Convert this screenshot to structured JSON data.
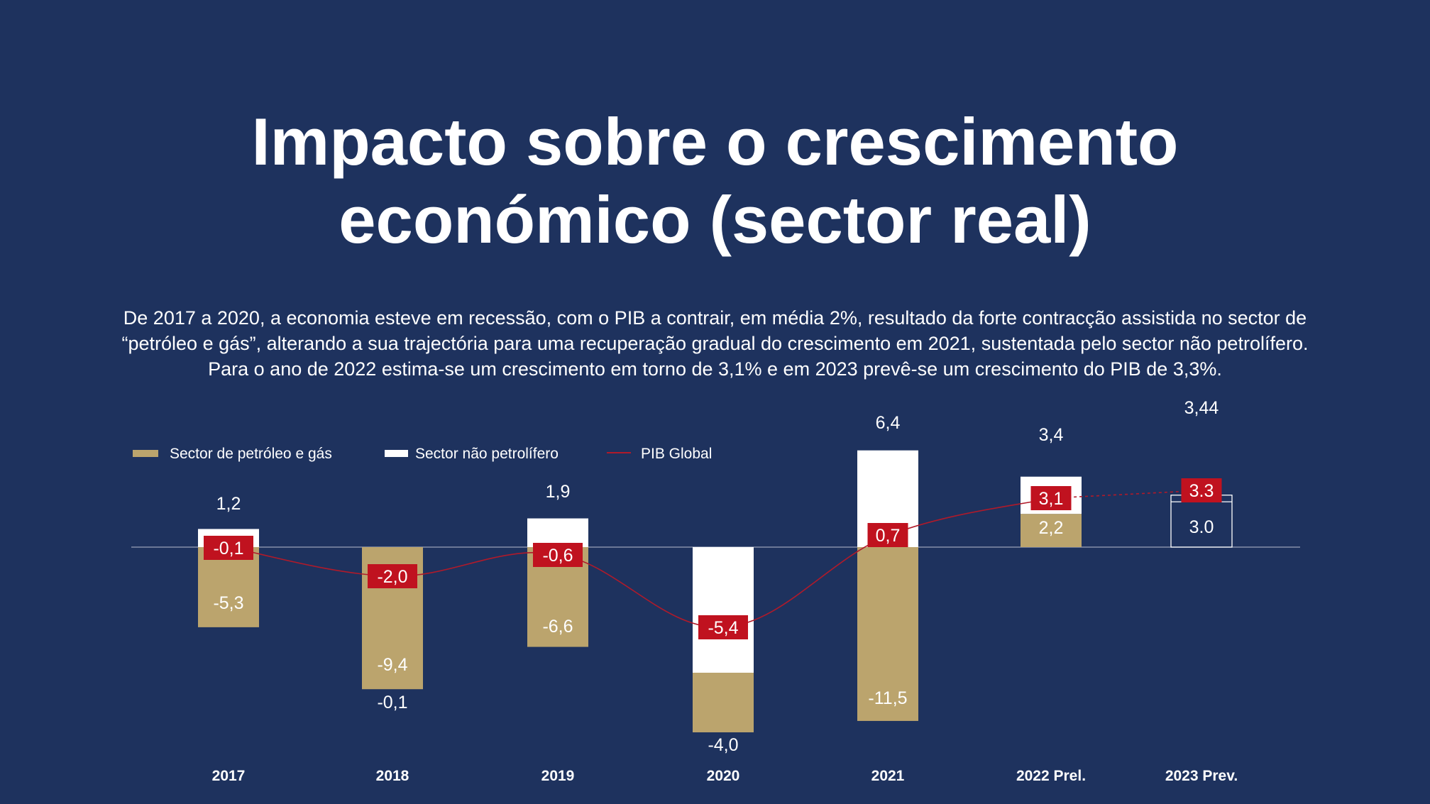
{
  "title": {
    "line1": "Impacto sobre o crescimento",
    "line2": "económico (sector real)"
  },
  "intro": {
    "line1": "De 2017 a 2020, a economia esteve em recessão, com o PIB a contrair, em média 2%, resultado da forte contracção assistida no sector de",
    "line2": "“petróleo e gás”, alterando a sua trajectória para uma recuperação gradual do crescimento em 2021, sustentada pelo sector não petrolífero.",
    "line3": "Para o ano de 2022 estima-se um crescimento em torno de 3,1% e em 2023 prevê-se um crescimento do PIB de 3,3%."
  },
  "colors": {
    "background": "#1e325e",
    "oil_gas": "#bba46d",
    "non_oil": "#ffffff",
    "pib_line": "#b01a2a",
    "pib_label_bg": "#c0121f",
    "baseline": "#9aa3b8"
  },
  "chart_data": {
    "type": "bar",
    "categories": [
      "2017",
      "2018",
      "2019",
      "2020",
      "2021",
      "2022 Prel.",
      "2023 Prev."
    ],
    "series": [
      {
        "name": "Sector de petróleo e gás",
        "values": [
          -5.3,
          -9.4,
          -6.6,
          -4.0,
          -11.5,
          2.2,
          3.0
        ],
        "labels": [
          "-5,3",
          "-9,4",
          "-6,6",
          "-4,0",
          "-11,5",
          "2,2",
          "3.0"
        ]
      },
      {
        "name": "Sector não petrolífero",
        "values": [
          1.2,
          -0.1,
          1.9,
          null,
          6.4,
          3.4,
          3.44
        ],
        "labels": [
          "1,2",
          "-0,1",
          "1,9",
          "",
          "6,4",
          "3,4",
          "3,44"
        ]
      },
      {
        "name": "PIB Global",
        "type": "line",
        "values": [
          -0.1,
          -2.0,
          -0.6,
          -5.4,
          0.7,
          3.1,
          3.3
        ],
        "labels": [
          "-0,1",
          "-2,0",
          "-0,6",
          "-5,4",
          "0,7",
          "3,1",
          "3.3"
        ]
      }
    ],
    "legend_position": "top-left",
    "grid": false
  }
}
